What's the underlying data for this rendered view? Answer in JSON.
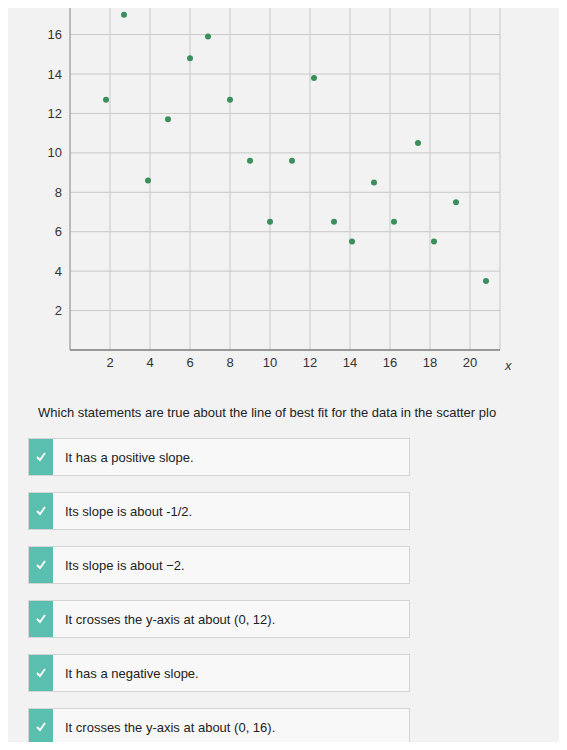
{
  "chart_data": {
    "type": "scatter",
    "x_label": "x",
    "color": "#3a8f5c",
    "marker": "circle",
    "grid": true,
    "xlim": [
      0,
      21.5
    ],
    "ylim": [
      0,
      17.5
    ],
    "xticks": [
      2,
      4,
      6,
      8,
      10,
      12,
      14,
      16,
      18,
      20
    ],
    "yticks": [
      2,
      4,
      6,
      8,
      10,
      12,
      14,
      16
    ],
    "x": [
      2.7,
      6.9,
      6.0,
      12.2,
      1.8,
      8.0,
      4.9,
      17.4,
      9.0,
      11.1,
      3.9,
      15.2,
      19.3,
      10.0,
      13.2,
      16.2,
      14.1,
      18.2,
      20.8
    ],
    "values": [
      17,
      15.9,
      14.8,
      13.8,
      12.7,
      12.7,
      11.7,
      10.5,
      9.6,
      9.6,
      8.6,
      8.5,
      7.5,
      6.5,
      6.5,
      6.5,
      5.5,
      5.5,
      3.5
    ]
  },
  "question": "Which statements are true about the line of best fit for the data in the scatter plo",
  "options": [
    "It has a positive slope.",
    "Its slope is about -1/2.",
    "Its slope is about −2.",
    "It crosses the y-axis at about (0, 12).",
    "It has a negative slope.",
    "It crosses the y-axis at about (0, 16)."
  ]
}
